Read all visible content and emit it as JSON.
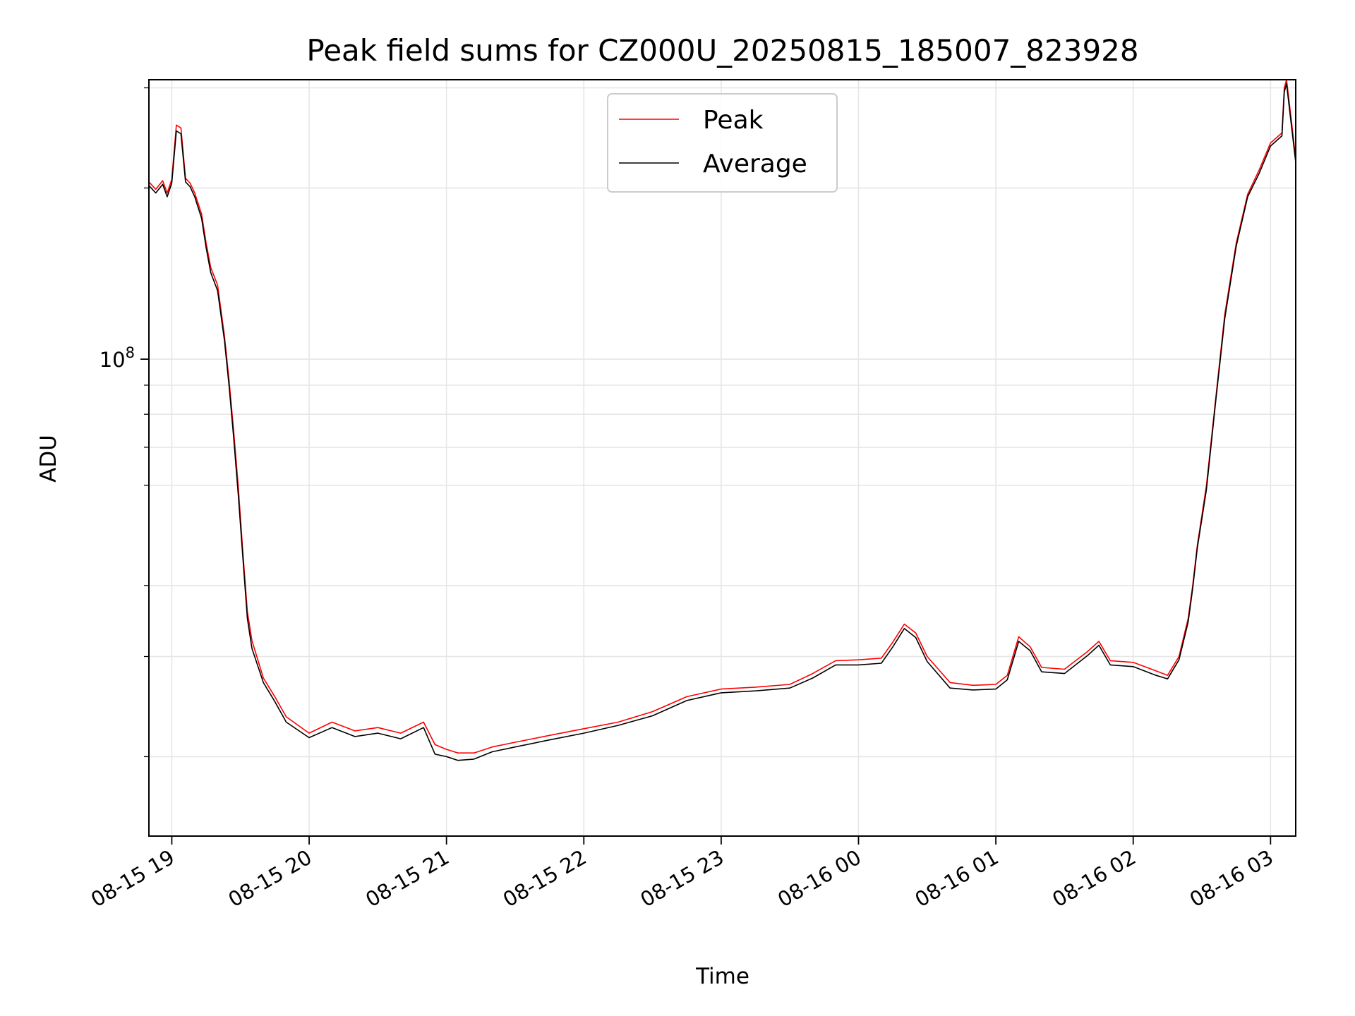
{
  "chart_data": {
    "type": "line",
    "title": "Peak field sums for CZ000U_20250815_185007_823928",
    "xlabel": "Time",
    "ylabel": "ADU",
    "y_scale": "log",
    "ylim": [
      14500000,
      310000000
    ],
    "xlim": [
      "2025-08-15T18:50:00",
      "2025-08-16T03:11:00"
    ],
    "x_ticks": [
      "08-15 19",
      "08-15 20",
      "08-15 21",
      "08-15 22",
      "08-15 23",
      "08-16 00",
      "08-16 01",
      "08-16 02",
      "08-16 03"
    ],
    "y_tick_label": "10^8",
    "grid": true,
    "legend_position": "top-center",
    "colors": {
      "Peak": "#ff0000",
      "Average": "#000000"
    },
    "x": [
      "2025-08-15T18:50:00",
      "2025-08-15T18:53:00",
      "2025-08-15T18:56:00",
      "2025-08-15T18:58:00",
      "2025-08-15T19:00:00",
      "2025-08-15T19:02:00",
      "2025-08-15T19:04:00",
      "2025-08-15T19:06:00",
      "2025-08-15T19:08:00",
      "2025-08-15T19:10:00",
      "2025-08-15T19:13:00",
      "2025-08-15T19:15:00",
      "2025-08-15T19:17:00",
      "2025-08-15T19:20:00",
      "2025-08-15T19:23:00",
      "2025-08-15T19:25:00",
      "2025-08-15T19:27:00",
      "2025-08-15T19:29:00",
      "2025-08-15T19:31:00",
      "2025-08-15T19:33:00",
      "2025-08-15T19:35:00",
      "2025-08-15T19:40:00",
      "2025-08-15T19:45:00",
      "2025-08-15T19:50:00",
      "2025-08-15T20:00:00",
      "2025-08-15T20:10:00",
      "2025-08-15T20:20:00",
      "2025-08-15T20:30:00",
      "2025-08-15T20:40:00",
      "2025-08-15T20:50:00",
      "2025-08-15T20:55:00",
      "2025-08-15T21:00:00",
      "2025-08-15T21:05:00",
      "2025-08-15T21:12:00",
      "2025-08-15T21:20:00",
      "2025-08-15T21:30:00",
      "2025-08-15T21:45:00",
      "2025-08-15T22:00:00",
      "2025-08-15T22:15:00",
      "2025-08-15T22:30:00",
      "2025-08-15T22:45:00",
      "2025-08-15T23:00:00",
      "2025-08-15T23:15:00",
      "2025-08-15T23:30:00",
      "2025-08-15T23:40:00",
      "2025-08-15T23:50:00",
      "2025-08-16T00:00:00",
      "2025-08-16T00:10:00",
      "2025-08-16T00:15:00",
      "2025-08-16T00:20:00",
      "2025-08-16T00:25:00",
      "2025-08-16T00:30:00",
      "2025-08-16T00:40:00",
      "2025-08-16T00:50:00",
      "2025-08-16T01:00:00",
      "2025-08-16T01:05:00",
      "2025-08-16T01:10:00",
      "2025-08-16T01:15:00",
      "2025-08-16T01:20:00",
      "2025-08-16T01:30:00",
      "2025-08-16T01:40:00",
      "2025-08-16T01:45:00",
      "2025-08-16T01:50:00",
      "2025-08-16T02:00:00",
      "2025-08-16T02:10:00",
      "2025-08-16T02:15:00",
      "2025-08-16T02:20:00",
      "2025-08-16T02:24:00",
      "2025-08-16T02:26:00",
      "2025-08-16T02:28:00",
      "2025-08-16T02:32:00",
      "2025-08-16T02:36:00",
      "2025-08-16T02:40:00",
      "2025-08-16T02:45:00",
      "2025-08-16T02:50:00",
      "2025-08-16T02:55:00",
      "2025-08-16T03:00:00",
      "2025-08-16T03:04:00",
      "2025-08-16T03:05:00",
      "2025-08-16T03:06:00",
      "2025-08-16T03:07:00",
      "2025-08-16T03:09:00",
      "2025-08-16T03:11:00"
    ],
    "series": [
      {
        "name": "Peak",
        "values": [
          205000000,
          199000000,
          206000000,
          196000000,
          207000000,
          258000000,
          255000000,
          208000000,
          204000000,
          196000000,
          180000000,
          160000000,
          145000000,
          135000000,
          110000000,
          92000000,
          75000000,
          60000000,
          46000000,
          36000000,
          32000000,
          27500000,
          25500000,
          23500000,
          22000000,
          23000000,
          22200000,
          22500000,
          22000000,
          23000000,
          21000000,
          20600000,
          20300000,
          20300000,
          20800000,
          21200000,
          21800000,
          22400000,
          23000000,
          24000000,
          25500000,
          26300000,
          26500000,
          26800000,
          28000000,
          29500000,
          29600000,
          29800000,
          31800000,
          34200000,
          33000000,
          30000000,
          27000000,
          26700000,
          26800000,
          27800000,
          32500000,
          31200000,
          28700000,
          28500000,
          30600000,
          31900000,
          29500000,
          29300000,
          28300000,
          27800000,
          30000000,
          35000000,
          40000000,
          47000000,
          60000000,
          85000000,
          120000000,
          160000000,
          195000000,
          215000000,
          240000000,
          248000000,
          250000000,
          300000000,
          310000000,
          265000000,
          225000000
        ]
      },
      {
        "name": "Average",
        "values": [
          202000000,
          196000000,
          203000000,
          193000000,
          204000000,
          252000000,
          249000000,
          205000000,
          201000000,
          193000000,
          177000000,
          157000000,
          142000000,
          132000000,
          108000000,
          90000000,
          73000000,
          58000000,
          45000000,
          35000000,
          31000000,
          27000000,
          25000000,
          23000000,
          21600000,
          22500000,
          21700000,
          22000000,
          21500000,
          22500000,
          20200000,
          20000000,
          19700000,
          19800000,
          20400000,
          20800000,
          21400000,
          22000000,
          22700000,
          23600000,
          25100000,
          25900000,
          26100000,
          26400000,
          27500000,
          29000000,
          29000000,
          29200000,
          31200000,
          33600000,
          32400000,
          29400000,
          26400000,
          26200000,
          26300000,
          27300000,
          31900000,
          30700000,
          28200000,
          28000000,
          30100000,
          31400000,
          29000000,
          28800000,
          27800000,
          27400000,
          29600000,
          34500000,
          39500000,
          46500000,
          59000000,
          84000000,
          118000000,
          158000000,
          193000000,
          212000000,
          237000000,
          245000000,
          247000000,
          295000000,
          305000000,
          260000000,
          222000000
        ]
      }
    ]
  }
}
